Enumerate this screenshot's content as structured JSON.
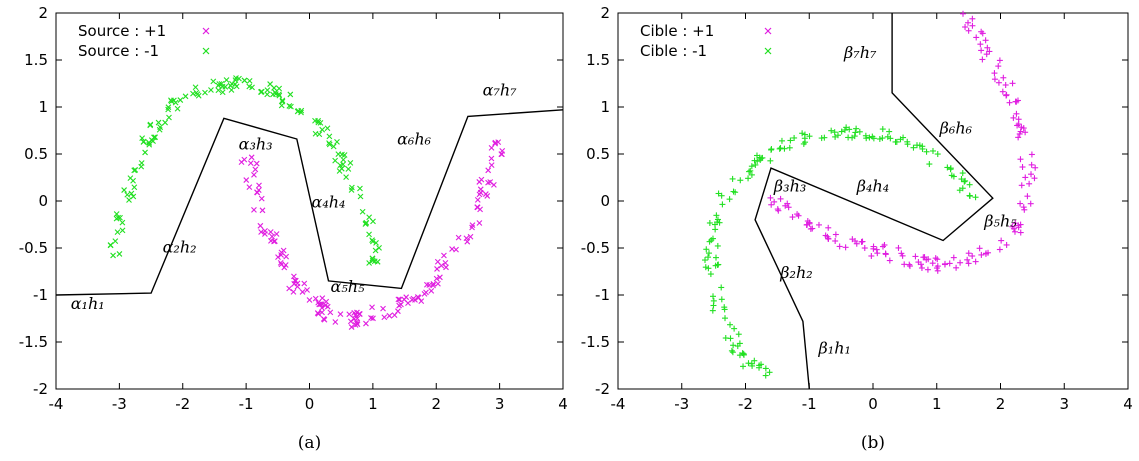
{
  "chart_data": [
    {
      "type": "scatter",
      "caption": "(a)",
      "xlim": [
        -4,
        4
      ],
      "ylim": [
        -2,
        2
      ],
      "xticks": [
        -4,
        -3,
        -2,
        -1,
        0,
        1,
        2,
        3,
        4
      ],
      "yticks": [
        -2,
        -1.5,
        -1,
        -0.5,
        0,
        0.5,
        1,
        1.5,
        2
      ],
      "xtick_labels": [
        "-4",
        "-3",
        "-2",
        "-1",
        "0",
        "1",
        "2",
        "3",
        "4"
      ],
      "ytick_labels": [
        "-2",
        "-1.5",
        "-1",
        "-0.5",
        "0",
        "0.5",
        "1",
        "1.5",
        "2"
      ],
      "grid": false,
      "legend_placement": "top-left",
      "marker": "x",
      "series": [
        {
          "name": "Source : +1",
          "color": "#e01ee0",
          "curve": {
            "shape": "lower-moon",
            "center": [
              1.0,
              0.0
            ],
            "radius": 1.2,
            "angle_range": [
              190,
              360
            ]
          },
          "points": [
            [
              -1.0,
              0.58
            ],
            [
              -0.9,
              0.3
            ],
            [
              -0.8,
              -0.1
            ],
            [
              -0.6,
              -0.4
            ],
            [
              -0.4,
              -0.7
            ],
            [
              -0.2,
              -0.9
            ],
            [
              0.0,
              -1.05
            ],
            [
              0.2,
              -1.15
            ],
            [
              0.4,
              -1.25
            ],
            [
              0.6,
              -1.28
            ],
            [
              0.8,
              -1.25
            ],
            [
              1.0,
              -1.2
            ],
            [
              1.3,
              -1.15
            ],
            [
              1.6,
              -1.05
            ],
            [
              1.9,
              -0.9
            ],
            [
              2.2,
              -0.6
            ],
            [
              2.5,
              -0.3
            ],
            [
              2.7,
              0.0
            ],
            [
              2.9,
              0.35
            ],
            [
              3.0,
              0.6
            ]
          ]
        },
        {
          "name": "Source : -1",
          "color": "#22e022",
          "curve": {
            "shape": "upper-moon",
            "center": [
              -1.0,
              0.0
            ],
            "radius": 1.25,
            "angle_range": [
              0,
              170
            ]
          },
          "points": [
            [
              -3.1,
              -0.6
            ],
            [
              -3.0,
              -0.3
            ],
            [
              -2.9,
              0.0
            ],
            [
              -2.8,
              0.3
            ],
            [
              -2.6,
              0.6
            ],
            [
              -2.4,
              0.85
            ],
            [
              -2.1,
              1.05
            ],
            [
              -1.8,
              1.15
            ],
            [
              -1.5,
              1.22
            ],
            [
              -1.2,
              1.25
            ],
            [
              -0.9,
              1.22
            ],
            [
              -0.6,
              1.15
            ],
            [
              -0.3,
              1.05
            ],
            [
              0.0,
              0.9
            ],
            [
              0.3,
              0.7
            ],
            [
              0.5,
              0.45
            ],
            [
              0.7,
              0.15
            ],
            [
              0.9,
              -0.2
            ],
            [
              1.0,
              -0.5
            ],
            [
              1.0,
              -0.75
            ]
          ]
        }
      ],
      "boundary": [
        [
          -4.0,
          -1.0
        ],
        [
          -2.5,
          -0.98
        ],
        [
          -1.35,
          0.88
        ],
        [
          -0.2,
          0.66
        ],
        [
          0.3,
          -0.85
        ],
        [
          1.45,
          -0.93
        ],
        [
          2.5,
          0.9
        ],
        [
          4.0,
          0.97
        ]
      ],
      "annotations": [
        {
          "text": "α₁h₁",
          "x": -3.5,
          "y": -1.15
        },
        {
          "text": "α₂h₂",
          "x": -2.05,
          "y": -0.55
        },
        {
          "text": "α₃h₃",
          "x": -0.85,
          "y": 0.55
        },
        {
          "text": "α₄h₄",
          "x": 0.3,
          "y": -0.07
        },
        {
          "text": "α₅h₅",
          "x": 0.6,
          "y": -0.97
        },
        {
          "text": "α₆h₆",
          "x": 1.65,
          "y": 0.6
        },
        {
          "text": "α₇h₇",
          "x": 3.0,
          "y": 1.12
        }
      ]
    },
    {
      "type": "scatter",
      "caption": "(b)",
      "xlim": [
        -4,
        4
      ],
      "ylim": [
        -2,
        2
      ],
      "xticks": [
        -4,
        -3,
        -2,
        -1,
        0,
        1,
        2,
        3,
        4
      ],
      "yticks": [
        -2,
        -1.5,
        -1,
        -0.5,
        0,
        0.5,
        1,
        1.5,
        2
      ],
      "xtick_labels": [
        "-4",
        "-3",
        "-2",
        "-1",
        "0",
        "1",
        "2",
        "3",
        "4"
      ],
      "ytick_labels": [
        "-2",
        "-1.5",
        "-1",
        "-0.5",
        "0",
        "0.5",
        "1",
        "1.5",
        "2"
      ],
      "grid": false,
      "legend_placement": "top-left",
      "marker": "+",
      "series": [
        {
          "name": "Cible : +1",
          "color": "#e01ee0",
          "points": [
            [
              1.45,
              1.95
            ],
            [
              1.7,
              1.7
            ],
            [
              1.9,
              1.45
            ],
            [
              2.1,
              1.2
            ],
            [
              2.3,
              0.9
            ],
            [
              2.4,
              0.55
            ],
            [
              2.45,
              0.2
            ],
            [
              2.35,
              -0.15
            ],
            [
              2.1,
              -0.4
            ],
            [
              1.8,
              -0.55
            ],
            [
              1.4,
              -0.65
            ],
            [
              1.0,
              -0.68
            ],
            [
              0.6,
              -0.62
            ],
            [
              0.2,
              -0.55
            ],
            [
              -0.2,
              -0.48
            ],
            [
              -0.6,
              -0.38
            ],
            [
              -1.0,
              -0.25
            ],
            [
              -1.3,
              -0.12
            ],
            [
              -1.55,
              0.0
            ]
          ]
        },
        {
          "name": "Cible : -1",
          "color": "#22e022",
          "points": [
            [
              1.6,
              0.05
            ],
            [
              1.35,
              0.22
            ],
            [
              1.1,
              0.4
            ],
            [
              0.7,
              0.58
            ],
            [
              0.3,
              0.68
            ],
            [
              -0.1,
              0.72
            ],
            [
              -0.5,
              0.73
            ],
            [
              -0.9,
              0.7
            ],
            [
              -1.3,
              0.62
            ],
            [
              -1.7,
              0.5
            ],
            [
              -2.0,
              0.3
            ],
            [
              -2.3,
              0.05
            ],
            [
              -2.5,
              -0.25
            ],
            [
              -2.55,
              -0.55
            ],
            [
              -2.5,
              -0.85
            ],
            [
              -2.4,
              -1.15
            ],
            [
              -2.25,
              -1.4
            ],
            [
              -2.1,
              -1.6
            ],
            [
              -1.9,
              -1.75
            ],
            [
              -1.6,
              -1.82
            ]
          ]
        }
      ],
      "boundary": [
        [
          -1.0,
          -2.0
        ],
        [
          -1.1,
          -1.28
        ],
        [
          -1.85,
          -0.2
        ],
        [
          -1.6,
          0.35
        ],
        [
          1.1,
          -0.42
        ],
        [
          1.88,
          0.03
        ],
        [
          0.3,
          1.15
        ],
        [
          0.3,
          2.0
        ]
      ],
      "annotations": [
        {
          "text": "β₁h₁",
          "x": -0.6,
          "y": -1.62
        },
        {
          "text": "β₂h₂",
          "x": -1.2,
          "y": -0.82
        },
        {
          "text": "β₃h₃",
          "x": -1.3,
          "y": 0.1
        },
        {
          "text": "β₄h₄",
          "x": 0.0,
          "y": 0.1
        },
        {
          "text": "β₅h₅",
          "x": 2.0,
          "y": -0.27
        },
        {
          "text": "β₆h₆",
          "x": 1.3,
          "y": 0.72
        },
        {
          "text": "β₇h₇",
          "x": -0.2,
          "y": 1.52
        }
      ]
    }
  ]
}
